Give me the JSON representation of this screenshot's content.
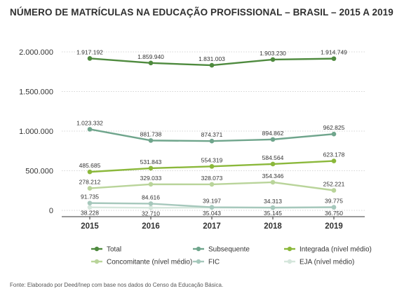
{
  "title": "NÚMERO DE MATRÍCULAS NA EDUCAÇÃO PROFISSIONAL – BRASIL – 2015 A 2019",
  "source": "Fonte: Elaborado por Deed/Inep com base nos dados do Censo da Educação Básica.",
  "chart_data": {
    "type": "line",
    "title": "NÚMERO DE MATRÍCULAS NA EDUCAÇÃO PROFISSIONAL – BRASIL – 2015 A 2019",
    "xlabel": "",
    "ylabel": "",
    "categories": [
      "2015",
      "2016",
      "2017",
      "2018",
      "2019"
    ],
    "ylim": [
      0,
      2000000
    ],
    "yticks": [
      0,
      500000,
      1000000,
      1500000,
      2000000
    ],
    "ytick_labels": [
      "0",
      "500.000",
      "1.000.000",
      "1.500.000",
      "2.000.000"
    ],
    "grid": "horizontal dotted",
    "legend_position": "bottom",
    "series": [
      {
        "name": "Total",
        "color": "#4e8a3e",
        "values": [
          1917192,
          1859940,
          1831003,
          1903230,
          1914749
        ],
        "labels": [
          "1.917.192",
          "1.859.940",
          "1.831.003",
          "1.903.230",
          "1.914.749"
        ]
      },
      {
        "name": "Subsequente",
        "color": "#6fa58c",
        "values": [
          1023332,
          881738,
          874371,
          894862,
          962825
        ],
        "labels": [
          "1.023.332",
          "881.738",
          "874.371",
          "894.862",
          "962.825"
        ]
      },
      {
        "name": "Integrada (nível médio)",
        "color": "#8bb83b",
        "values": [
          485685,
          531843,
          554319,
          584564,
          623178
        ],
        "labels": [
          "485.685",
          "531.843",
          "554.319",
          "584.564",
          "623.178"
        ]
      },
      {
        "name": "Concomitante (nível médio)",
        "color": "#b9d49a",
        "values": [
          278212,
          329033,
          328073,
          354346,
          252221
        ],
        "labels": [
          "278.212",
          "329.033",
          "328.073",
          "354.346",
          "252.221"
        ]
      },
      {
        "name": "FIC",
        "color": "#a6c8bc",
        "values": [
          91735,
          84616,
          39197,
          34313,
          39775
        ],
        "labels": [
          "91.735",
          "84.616",
          "39.197",
          "34.313",
          "39.775"
        ]
      },
      {
        "name": "EJA (nível médio)",
        "color": "#d5e6dc",
        "values": [
          38228,
          32710,
          35043,
          35145,
          36750
        ],
        "labels": [
          "38.228",
          "32.710",
          "35.043",
          "35.145",
          "36.750"
        ]
      }
    ]
  }
}
